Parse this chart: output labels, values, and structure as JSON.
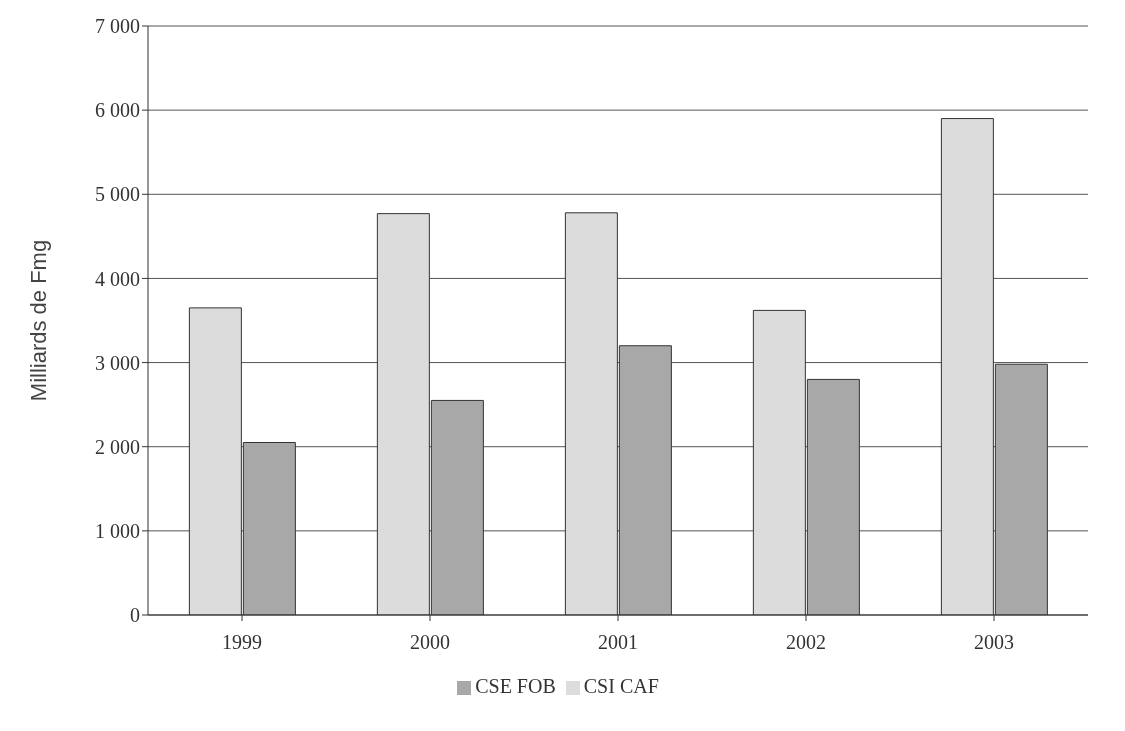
{
  "chart_data": {
    "type": "bar",
    "ylabel": "Milliards de Fmg",
    "categories": [
      "1999",
      "2000",
      "2001",
      "2002",
      "2003"
    ],
    "series": [
      {
        "name": "CSI CAF",
        "color": "#dcdcdc",
        "values": [
          3650,
          4770,
          4780,
          3620,
          5900
        ]
      },
      {
        "name": "CSE FOB",
        "color": "#a8a8a8",
        "values": [
          2050,
          2550,
          3200,
          2800,
          2980
        ]
      }
    ],
    "ylim": [
      0,
      7000
    ],
    "yticks": [
      0,
      {
        "value": 1000,
        "label": "1 000"
      },
      {
        "value": 2000,
        "label": "2 000"
      },
      {
        "value": 3000,
        "label": "3 000"
      },
      {
        "value": 4000,
        "label": "4 000"
      },
      {
        "value": 5000,
        "label": "5 000"
      },
      {
        "value": 6000,
        "label": "6 000"
      },
      {
        "value": 7000,
        "label": "7 000"
      }
    ],
    "grid": "y",
    "legend": "bottom"
  }
}
